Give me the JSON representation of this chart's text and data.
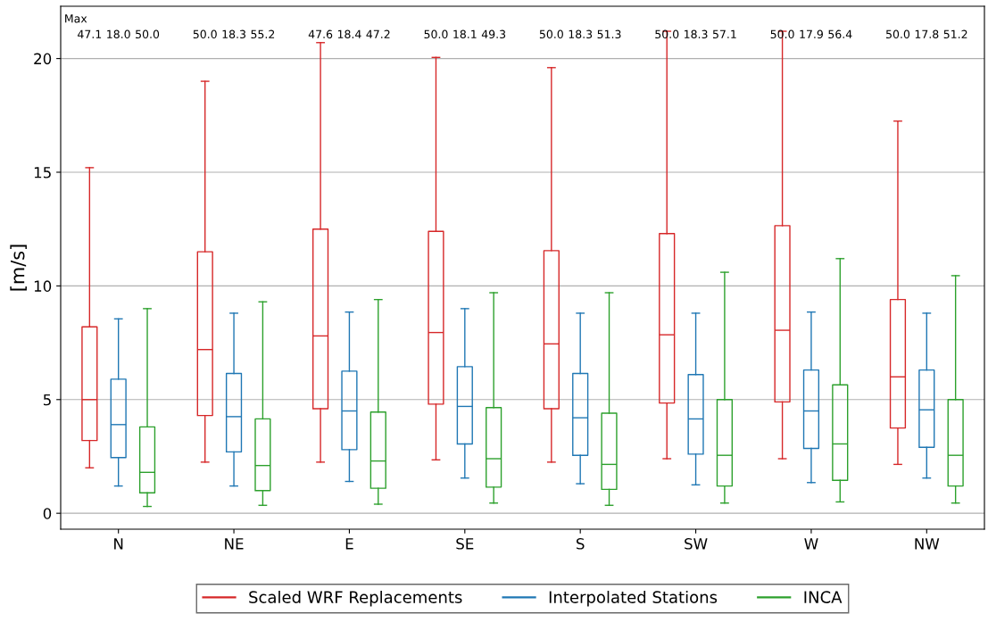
{
  "chart_data": {
    "type": "box",
    "ylabel": "[m/s]",
    "categories": [
      "N",
      "NE",
      "E",
      "SE",
      "S",
      "SW",
      "W",
      "NW"
    ],
    "ylim": [
      -0.7,
      22.3
    ],
    "yticks": [
      0,
      5,
      10,
      15,
      20
    ],
    "grid": "y",
    "legend": "bottom",
    "series": [
      {
        "name": "Scaled WRF Replacements",
        "color": "#d62728",
        "boxes": [
          {
            "low": 2.0,
            "q1": 3.2,
            "median": 5.0,
            "q3": 8.2,
            "high": 15.2
          },
          {
            "low": 2.25,
            "q1": 4.3,
            "median": 7.2,
            "q3": 11.5,
            "high": 19.0
          },
          {
            "low": 2.25,
            "q1": 4.6,
            "median": 7.8,
            "q3": 12.5,
            "high": 20.7
          },
          {
            "low": 2.35,
            "q1": 4.8,
            "median": 7.95,
            "q3": 12.4,
            "high": 20.05
          },
          {
            "low": 2.25,
            "q1": 4.6,
            "median": 7.45,
            "q3": 11.55,
            "high": 19.6
          },
          {
            "low": 2.4,
            "q1": 4.85,
            "median": 7.85,
            "q3": 12.3,
            "high": 21.2
          },
          {
            "low": 2.4,
            "q1": 4.9,
            "median": 8.05,
            "q3": 12.65,
            "high": 21.2
          },
          {
            "low": 2.15,
            "q1": 3.75,
            "median": 6.0,
            "q3": 9.4,
            "high": 17.25
          }
        ]
      },
      {
        "name": "Interpolated Stations",
        "color": "#1f77b4",
        "boxes": [
          {
            "low": 1.2,
            "q1": 2.45,
            "median": 3.9,
            "q3": 5.9,
            "high": 8.55
          },
          {
            "low": 1.2,
            "q1": 2.7,
            "median": 4.25,
            "q3": 6.15,
            "high": 8.8
          },
          {
            "low": 1.4,
            "q1": 2.8,
            "median": 4.5,
            "q3": 6.25,
            "high": 8.85
          },
          {
            "low": 1.55,
            "q1": 3.05,
            "median": 4.7,
            "q3": 6.45,
            "high": 9.0
          },
          {
            "low": 1.3,
            "q1": 2.55,
            "median": 4.2,
            "q3": 6.15,
            "high": 8.8
          },
          {
            "low": 1.25,
            "q1": 2.6,
            "median": 4.15,
            "q3": 6.1,
            "high": 8.8
          },
          {
            "low": 1.35,
            "q1": 2.85,
            "median": 4.5,
            "q3": 6.3,
            "high": 8.85
          },
          {
            "low": 1.55,
            "q1": 2.9,
            "median": 4.55,
            "q3": 6.3,
            "high": 8.8
          }
        ]
      },
      {
        "name": "INCA",
        "color": "#2ca02c",
        "boxes": [
          {
            "low": 0.3,
            "q1": 0.9,
            "median": 1.8,
            "q3": 3.8,
            "high": 9.0
          },
          {
            "low": 0.35,
            "q1": 1.0,
            "median": 2.1,
            "q3": 4.15,
            "high": 9.3
          },
          {
            "low": 0.4,
            "q1": 1.1,
            "median": 2.3,
            "q3": 4.45,
            "high": 9.4
          },
          {
            "low": 0.45,
            "q1": 1.15,
            "median": 2.4,
            "q3": 4.65,
            "high": 9.7
          },
          {
            "low": 0.35,
            "q1": 1.05,
            "median": 2.15,
            "q3": 4.4,
            "high": 9.7
          },
          {
            "low": 0.45,
            "q1": 1.2,
            "median": 2.55,
            "q3": 5.0,
            "high": 10.6
          },
          {
            "low": 0.5,
            "q1": 1.45,
            "median": 3.05,
            "q3": 5.65,
            "high": 11.2
          },
          {
            "low": 0.45,
            "q1": 1.2,
            "median": 2.55,
            "q3": 5.0,
            "high": 10.45
          }
        ]
      }
    ],
    "annotations": [
      "Max",
      "47.1",
      "18.0",
      "50.0",
      "50.0",
      "18.3",
      "55.2",
      "47.6",
      "18.4",
      "47.2",
      "50.0",
      "18.1",
      "49.3",
      "50.0",
      "18.3",
      "51.3",
      "50.0",
      "18.3",
      "57.1",
      "50.0",
      "17.9",
      "56.4",
      "50.0",
      "17.8",
      "51.2"
    ]
  }
}
